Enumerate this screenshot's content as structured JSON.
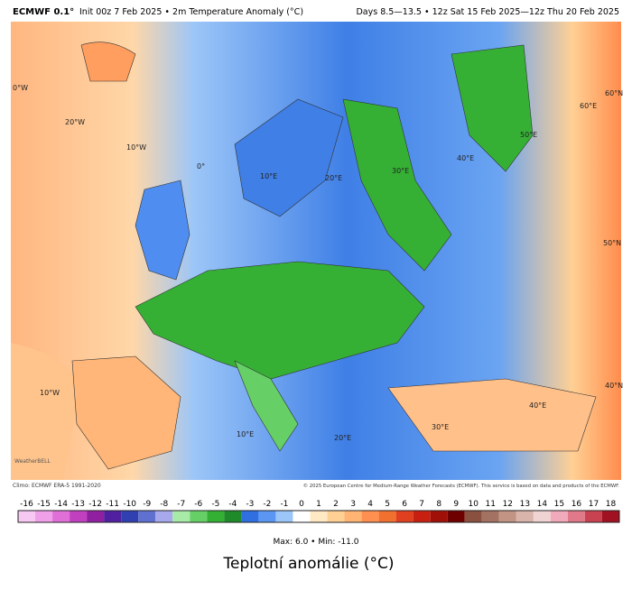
{
  "header": {
    "title": "ECMWF 0.1°",
    "subtitle": "Init 00z 7 Feb 2025 • 2m Temperature Anomaly (°C)",
    "valid": "Days 8.5—13.5 • 12z Sat 15 Feb 2025—12z Thu 20 Feb 2025"
  },
  "map": {
    "labels": [
      "0°W",
      "20°W",
      "10°W",
      "0°",
      "10°E",
      "20°E",
      "30°E",
      "40°E",
      "50°E",
      "60°E",
      "60°N",
      "50°N",
      "40°N",
      "10°W",
      "10°E",
      "20°E",
      "30°E",
      "40°E"
    ],
    "logo": "WeatherBELL",
    "climo": "Climo: ECMWF ERA-5 1991-2020",
    "copyright": "© 2025 European Centre for Medium-Range Weather Forecasts (ECMWF). This service is based on data and products of the ECMWF."
  },
  "colorbar": {
    "ticks": [
      -16,
      -15,
      -14,
      -13,
      -12,
      -11,
      -10,
      -9,
      -8,
      -7,
      -6,
      -5,
      -4,
      -3,
      -2,
      -1,
      0,
      1,
      2,
      3,
      4,
      5,
      6,
      7,
      8,
      9,
      10,
      11,
      12,
      13,
      14,
      15,
      16,
      17,
      18
    ],
    "colors": [
      "#f7c8f2",
      "#f0a0e8",
      "#e070d8",
      "#c040c0",
      "#9020a0",
      "#5020a0",
      "#3040b0",
      "#6070d0",
      "#a8a8ec",
      "#a8eaa8",
      "#66d066",
      "#34b034",
      "#1f8a2a",
      "#2f6fe0",
      "#5a96f2",
      "#9cc6f8",
      "#ffffff",
      "#ffe8c4",
      "#ffd094",
      "#ffb474",
      "#ff9050",
      "#f07030",
      "#e04020",
      "#c82010",
      "#a01008",
      "#6e0000",
      "#8a5040",
      "#a47262",
      "#c29484",
      "#d8b4aa",
      "#f0d4d4",
      "#f0aabb",
      "#e07a8a",
      "#c84252",
      "#a01222"
    ]
  },
  "stats": "Max: 6.0 • Min: -11.0",
  "caption": "Teplotní anomálie (°C)"
}
